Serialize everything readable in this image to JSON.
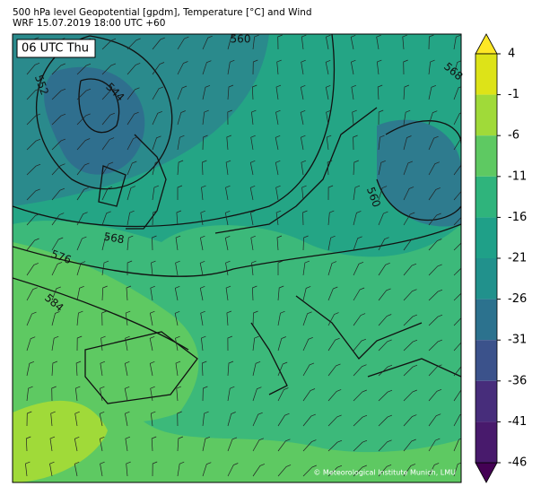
{
  "header": {
    "title": "500 hPa level Geopotential [gpdm], Temperature [°C] and Wind",
    "subtitle": "WRF 15.07.2019 18:00 UTC +60"
  },
  "map": {
    "time_label": "06 UTC Thu",
    "contour_labels": [
      560,
      552,
      544,
      568,
      560,
      568,
      576,
      584
    ],
    "copyright": "© Meteorological Institute Munich, LMU"
  },
  "colorbar": {
    "ticks": [
      4,
      -1,
      -6,
      -11,
      -16,
      -21,
      -26,
      -31,
      -36,
      -41,
      -46
    ],
    "band_colors": [
      "#dde318",
      "#a0da39",
      "#5ec962",
      "#2fb47c",
      "#1fa088",
      "#21918c",
      "#2c728e",
      "#3b528b",
      "#472d7b",
      "#481a6c"
    ],
    "extend_max_color": "#fde725",
    "extend_min_color": "#440154"
  }
}
